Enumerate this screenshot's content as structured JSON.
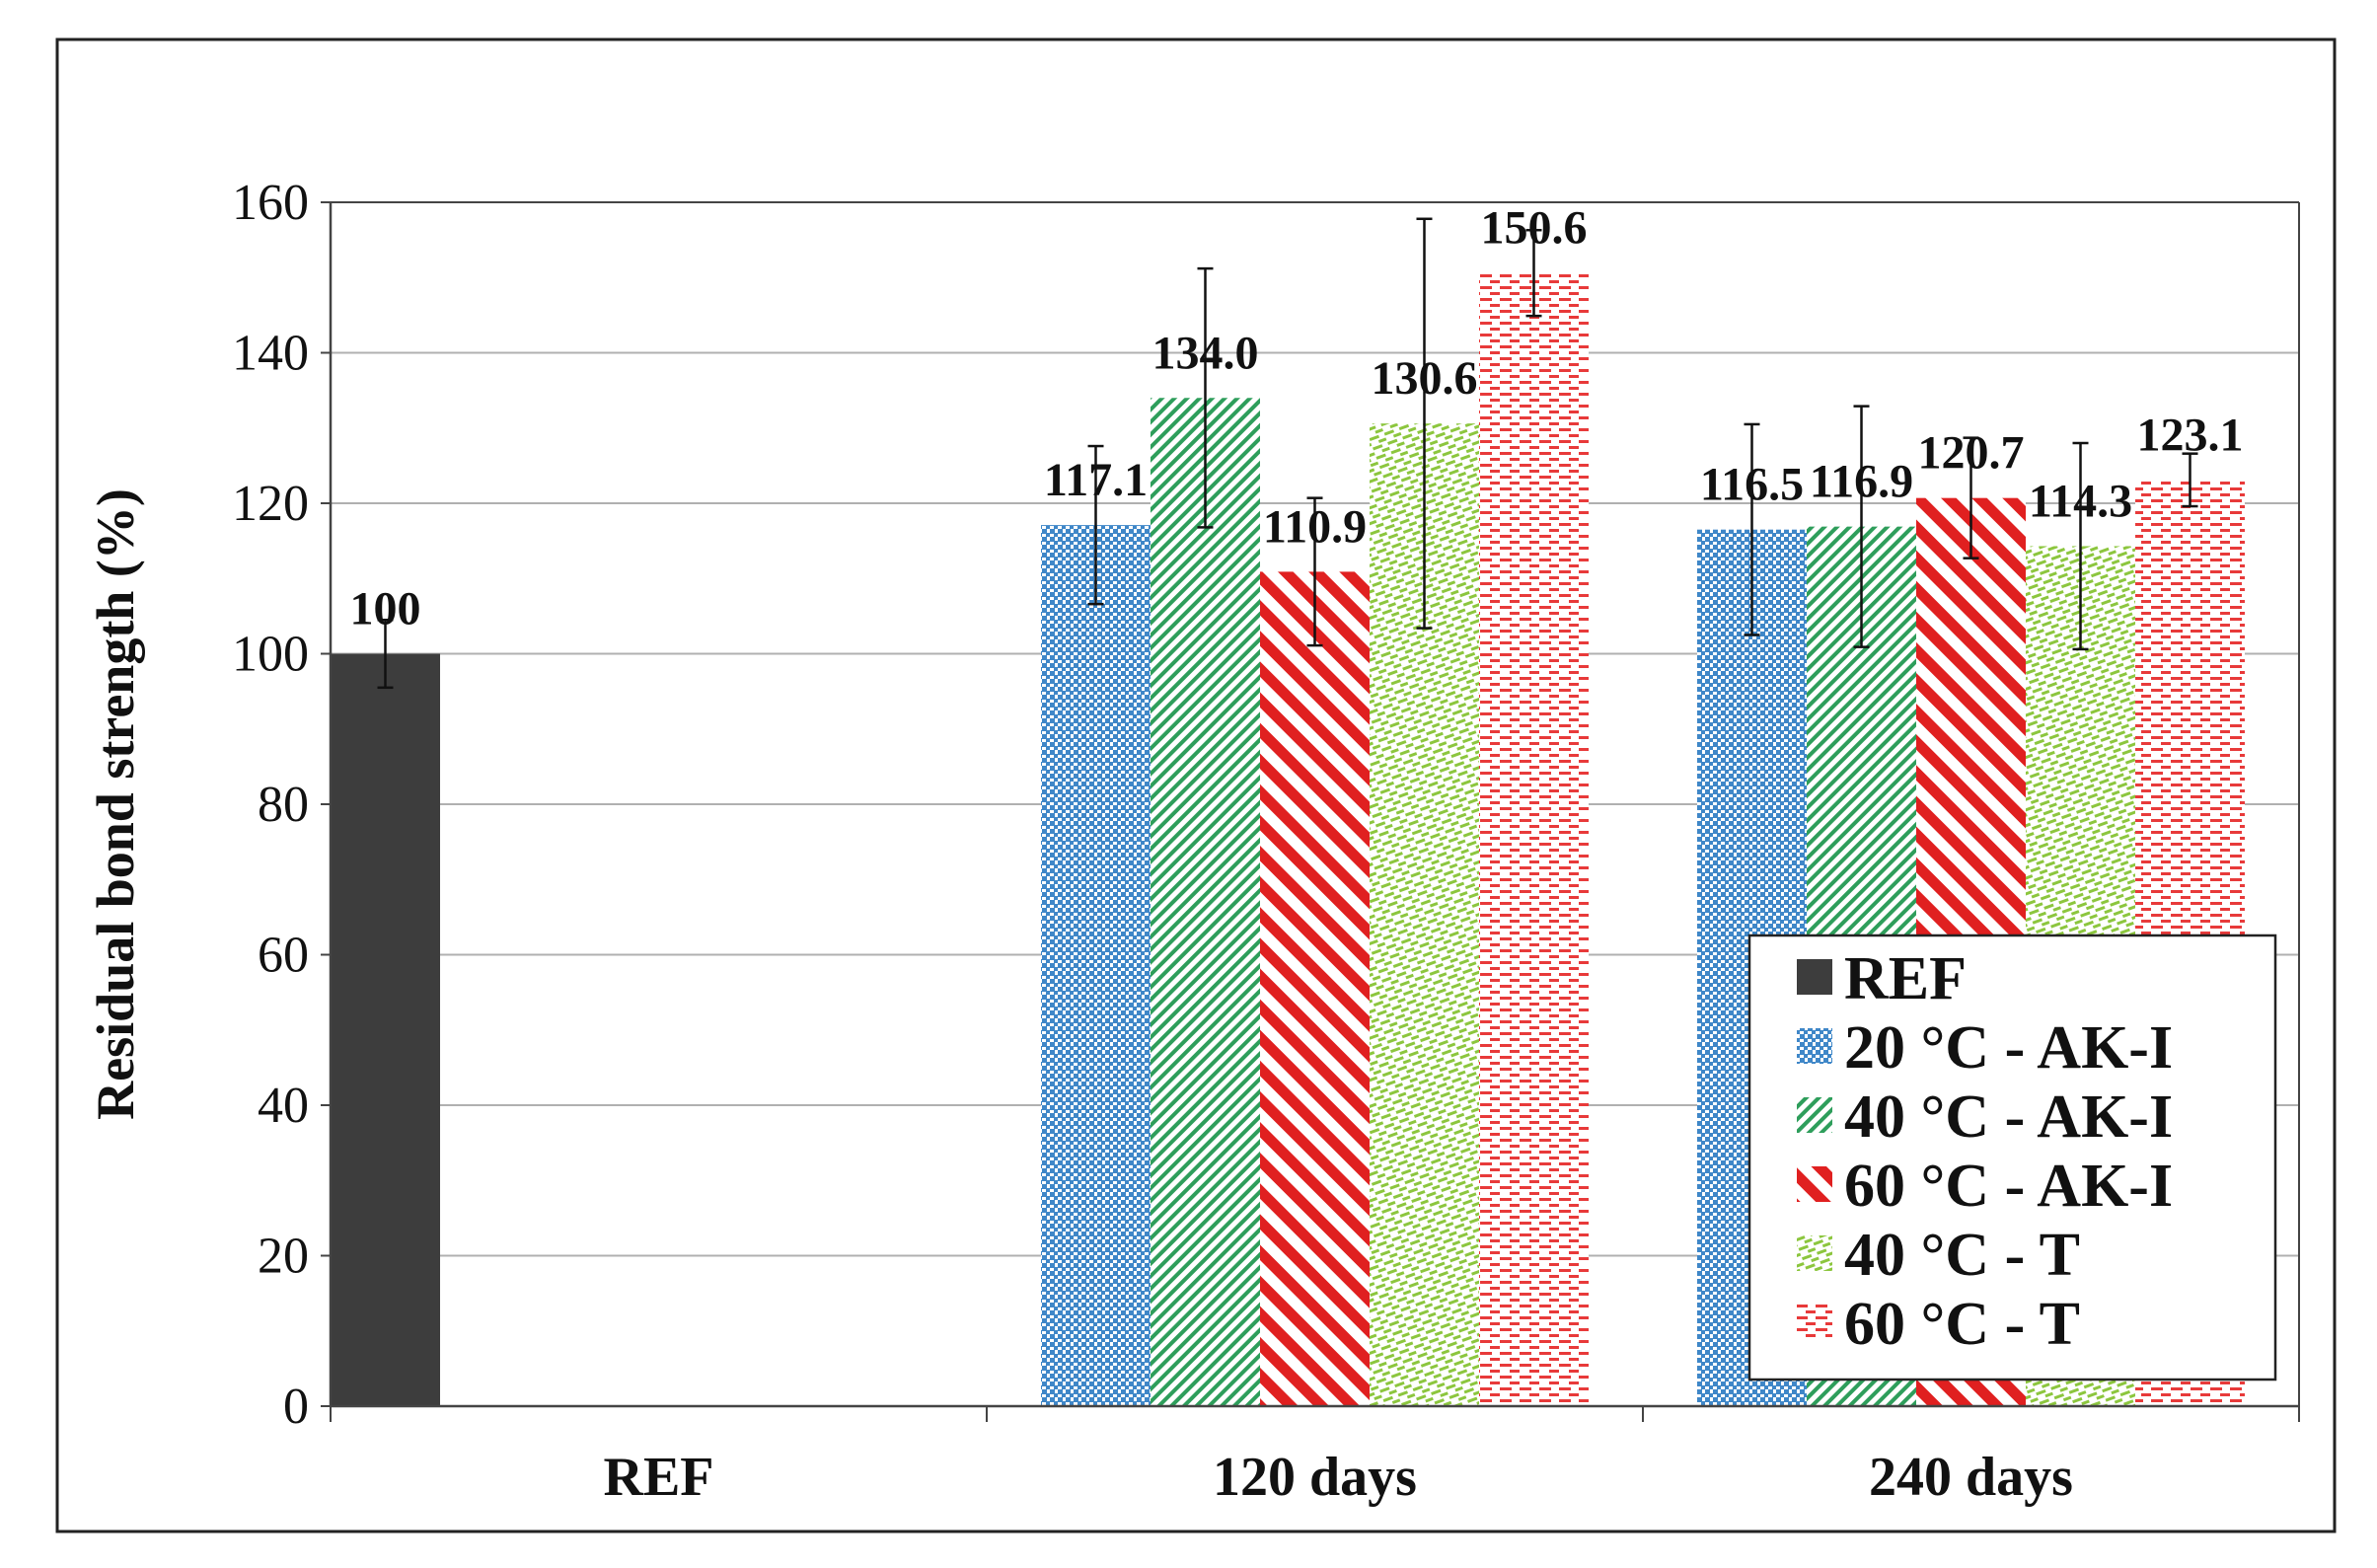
{
  "chart_data": {
    "type": "bar",
    "title": "",
    "xlabel": "",
    "ylabel": "Residual bond strength (%)",
    "ylim": [
      0,
      160
    ],
    "yticks": [
      0,
      20,
      40,
      60,
      80,
      100,
      120,
      140,
      160
    ],
    "grid": true,
    "legend_position": "bottom-right",
    "categories": [
      "REF",
      "120 days",
      "240 days"
    ],
    "series": [
      {
        "name": "REF",
        "color": "#3d3d3d",
        "pattern": "solid",
        "values": [
          100,
          null,
          null
        ],
        "errors": [
          4.5,
          null,
          null
        ],
        "labels": [
          "100",
          "",
          ""
        ]
      },
      {
        "name": "20 °C - AK-I",
        "color": "#3f87c8",
        "pattern": "dots",
        "values": [
          null,
          117.1,
          116.5
        ],
        "errors": [
          null,
          10.5,
          14
        ],
        "labels": [
          "",
          "117.1",
          "116.5"
        ]
      },
      {
        "name": "40 °C - AK-I",
        "color": "#2e9e5b",
        "pattern": "diagonal-fine",
        "values": [
          null,
          134.0,
          116.9
        ],
        "errors": [
          null,
          17.2,
          16
        ],
        "labels": [
          "",
          "134.0",
          "116.9"
        ]
      },
      {
        "name": "60 °C - AK-I",
        "color": "#e02020",
        "pattern": "diagonal-wide",
        "values": [
          null,
          110.9,
          120.7
        ],
        "errors": [
          null,
          9.8,
          8
        ],
        "labels": [
          "",
          "110.9",
          "120.7"
        ]
      },
      {
        "name": "40 °C - T",
        "color": "#8cc63e",
        "pattern": "dashes-light",
        "values": [
          null,
          130.6,
          114.3
        ],
        "errors": [
          null,
          27.2,
          13.7
        ],
        "labels": [
          "",
          "130.6",
          "114.3"
        ]
      },
      {
        "name": "60 °C - T",
        "color": "#e83a3a",
        "pattern": "dashes",
        "values": [
          null,
          150.6,
          123.1
        ],
        "errors": [
          null,
          5.7,
          3.5
        ],
        "labels": [
          "",
          "150.6",
          "123.1"
        ]
      }
    ]
  }
}
